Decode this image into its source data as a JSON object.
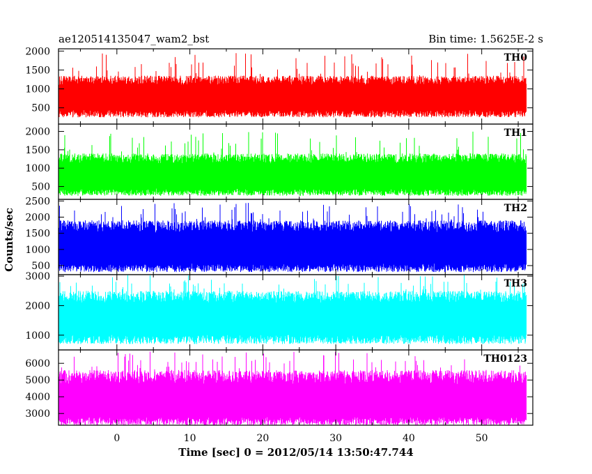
{
  "header": {
    "left": "ae120514135047_wam2_bst",
    "right": "Bin time: 1.5625E-2 s"
  },
  "chart_data": {
    "type": "line",
    "xlabel": "Time [sec] 0 = 2012/05/14 13:50:47.744",
    "ylabel": "Counts/sec",
    "xlim": [
      -8,
      57
    ],
    "x_start": -7.9,
    "x_end": 56.1,
    "bin_time": 0.015625,
    "xticks": [
      0,
      10,
      20,
      30,
      40,
      50
    ],
    "grid": false,
    "panels": [
      {
        "name": "TH0",
        "color": "#ff0000",
        "ylim": [
          70,
          2060
        ],
        "yticks": [
          500,
          1000,
          1500,
          2000
        ],
        "baseline": 250,
        "mean": 800,
        "peak_typ": 1350,
        "peak_max": 1950
      },
      {
        "name": "TH1",
        "color": "#00ff00",
        "ylim": [
          150,
          2200
        ],
        "yticks": [
          500,
          1000,
          1500,
          2000
        ],
        "baseline": 250,
        "mean": 800,
        "peak_typ": 1400,
        "peak_max": 2000
      },
      {
        "name": "TH2",
        "color": "#0000ff",
        "ylim": [
          220,
          2550
        ],
        "yticks": [
          500,
          1000,
          1500,
          2000,
          2500
        ],
        "baseline": 300,
        "mean": 1050,
        "peak_typ": 1900,
        "peak_max": 2450
      },
      {
        "name": "TH3",
        "color": "#00ffff",
        "ylim": [
          500,
          3050
        ],
        "yticks": [
          1000,
          2000,
          3000
        ],
        "baseline": 700,
        "mean": 1600,
        "peak_typ": 2500,
        "peak_max": 3050
      },
      {
        "name": "TH0123",
        "color": "#ff00ff",
        "ylim": [
          2300,
          6800
        ],
        "yticks": [
          3000,
          4000,
          5000,
          6000
        ],
        "baseline": 2300,
        "mean": 3700,
        "peak_typ": 5600,
        "peak_max": 6700
      }
    ]
  }
}
